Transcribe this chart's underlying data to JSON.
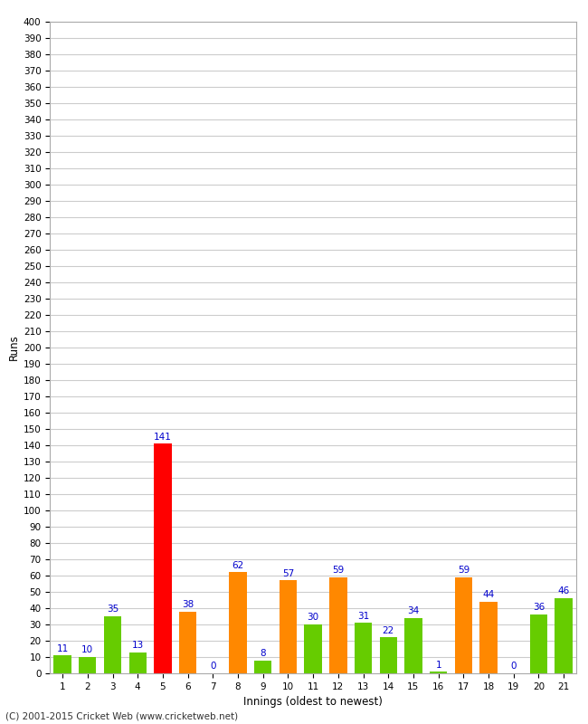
{
  "xlabel": "Innings (oldest to newest)",
  "ylabel": "Runs",
  "footer": "(C) 2001-2015 Cricket Web (www.cricketweb.net)",
  "innings": [
    1,
    2,
    3,
    4,
    5,
    6,
    7,
    8,
    9,
    10,
    11,
    12,
    13,
    14,
    15,
    16,
    17,
    18,
    19,
    20,
    21
  ],
  "values": [
    11,
    10,
    35,
    13,
    141,
    38,
    0,
    62,
    8,
    57,
    30,
    59,
    31,
    22,
    34,
    1,
    59,
    44,
    0,
    36,
    46
  ],
  "colors": [
    "#66cc00",
    "#66cc00",
    "#66cc00",
    "#66cc00",
    "#ff0000",
    "#ff8800",
    "#66cc00",
    "#ff8800",
    "#66cc00",
    "#ff8800",
    "#66cc00",
    "#ff8800",
    "#66cc00",
    "#66cc00",
    "#66cc00",
    "#66cc00",
    "#ff8800",
    "#ff8800",
    "#66cc00",
    "#66cc00",
    "#66cc00"
  ],
  "ylim": [
    0,
    400
  ],
  "ytick_step": 10,
  "label_color": "#0000cc",
  "background_color": "#ffffff",
  "grid_color": "#cccccc",
  "border_color": "#aaaaaa"
}
